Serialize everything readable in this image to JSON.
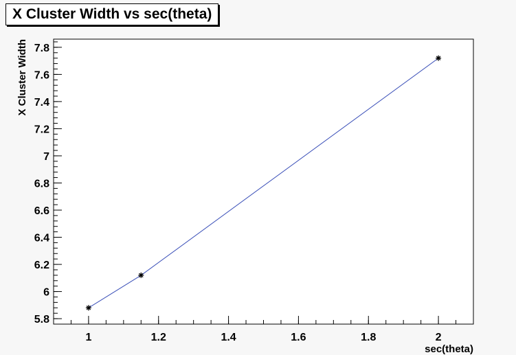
{
  "chart_data": {
    "type": "line",
    "title": "X Cluster Width vs sec(theta)",
    "xlabel": "sec(theta)",
    "ylabel": "X Cluster Width",
    "xlim": [
      0.9,
      2.1
    ],
    "ylim": [
      5.76,
      7.86
    ],
    "x_ticks": [
      "1",
      "1.2",
      "1.4",
      "1.6",
      "1.8",
      "2"
    ],
    "y_ticks": [
      "5.8",
      "6",
      "6.2",
      "6.4",
      "6.6",
      "6.8",
      "7",
      "7.2",
      "7.4",
      "7.6",
      "7.8"
    ],
    "grid": false,
    "marker": "asterisk",
    "line_color": "#3a4fb8",
    "marker_color": "#000000",
    "series": [
      {
        "x": [
          1,
          1.15,
          2
        ],
        "y": [
          5.88,
          6.12,
          7.72
        ]
      }
    ]
  }
}
